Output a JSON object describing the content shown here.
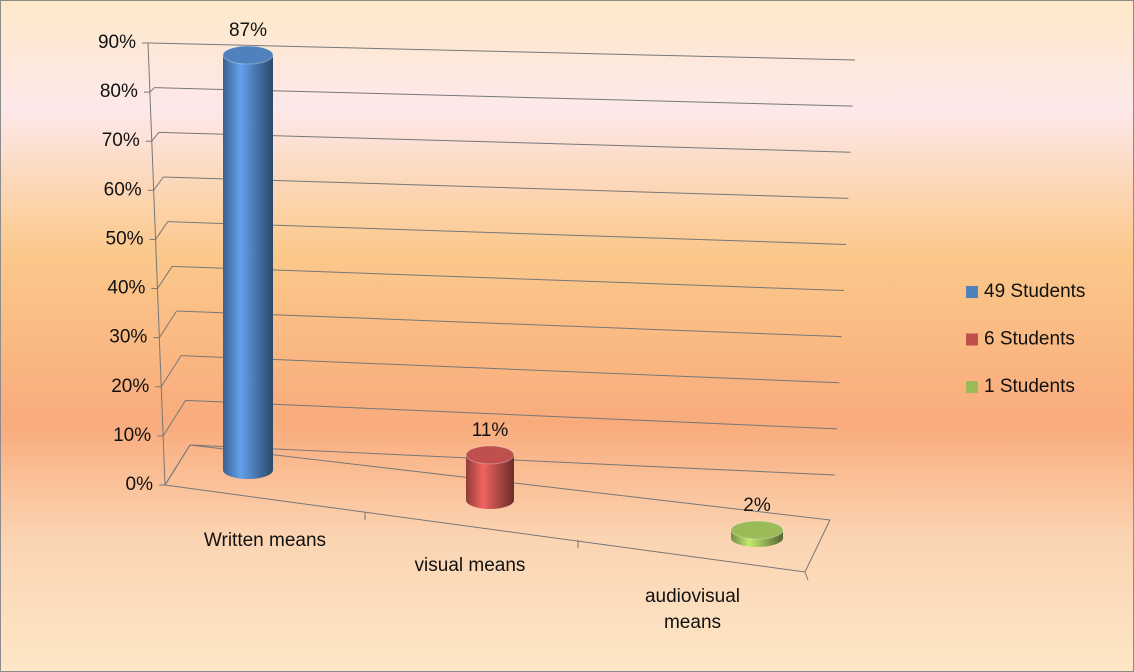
{
  "chart_data": {
    "type": "bar3d",
    "categories": [
      "Written means",
      "visual means",
      "audiovisual means"
    ],
    "series": [
      {
        "name": "49 Students",
        "color": "#4f81bd",
        "values": [
          87,
          null,
          null
        ],
        "value_labels": [
          "87%",
          null,
          null
        ]
      },
      {
        "name": "6 Students",
        "color": "#c0504d",
        "values": [
          null,
          11,
          null
        ],
        "value_labels": [
          null,
          "11%",
          null
        ]
      },
      {
        "name": "1 Students",
        "color": "#9bbb59",
        "values": [
          null,
          null,
          2
        ],
        "value_labels": [
          null,
          null,
          "2%"
        ]
      }
    ],
    "ylim": [
      0,
      90
    ],
    "yticks": [
      {
        "value": 0,
        "label": "0%"
      },
      {
        "value": 10,
        "label": "10%"
      },
      {
        "value": 20,
        "label": "20%"
      },
      {
        "value": 30,
        "label": "30%"
      },
      {
        "value": 40,
        "label": "40%"
      },
      {
        "value": 50,
        "label": "50%"
      },
      {
        "value": 60,
        "label": "60%"
      },
      {
        "value": 70,
        "label": "70%"
      },
      {
        "value": 80,
        "label": "80%"
      },
      {
        "value": 90,
        "label": "90%"
      }
    ],
    "grid": true,
    "legend": "right"
  }
}
